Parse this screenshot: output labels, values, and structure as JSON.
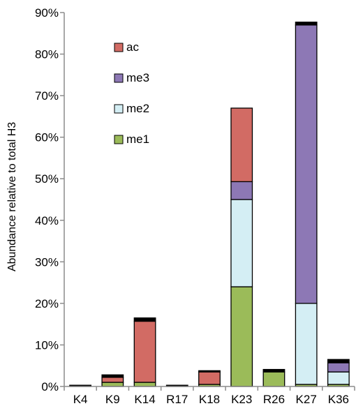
{
  "chart_data": {
    "type": "bar",
    "stacked": true,
    "categories": [
      "K4",
      "K9",
      "K14",
      "R17",
      "K18",
      "K23",
      "R26",
      "K27",
      "K36"
    ],
    "series": [
      {
        "name": "me1",
        "color": "#9bbb59",
        "values": [
          0.0,
          1.0,
          1.0,
          0.0,
          0.5,
          24.0,
          3.5,
          0.5,
          0.5
        ]
      },
      {
        "name": "me2",
        "color": "#d4eef4",
        "values": [
          0.0,
          0.0,
          0.0,
          0.0,
          0.0,
          21.0,
          0.0,
          19.5,
          3.0
        ]
      },
      {
        "name": "me3",
        "color": "#8d78b5",
        "values": [
          0.0,
          0.0,
          0.0,
          0.0,
          0.0,
          4.3,
          0.0,
          67.0,
          2.2
        ]
      },
      {
        "name": "ac",
        "color": "#d26b64",
        "values": [
          0.0,
          1.2,
          14.7,
          0.0,
          3.0,
          17.7,
          0.0,
          0.0,
          0.0
        ]
      },
      {
        "name": "",
        "color": "#000000",
        "values": [
          0.3,
          0.6,
          0.8,
          0.3,
          0.3,
          0.0,
          0.6,
          0.7,
          0.8
        ]
      }
    ],
    "legend_order": [
      "ac",
      "me3",
      "me2",
      "me1"
    ],
    "yticks": [
      "0%",
      "10%",
      "20%",
      "30%",
      "40%",
      "50%",
      "60%",
      "70%",
      "80%",
      "90%"
    ],
    "ylim": [
      0,
      90
    ],
    "ylabel": "Abundance relative to total H3",
    "xlabel": "",
    "title": "",
    "grid": false,
    "legend_position": "top-left-inside"
  }
}
